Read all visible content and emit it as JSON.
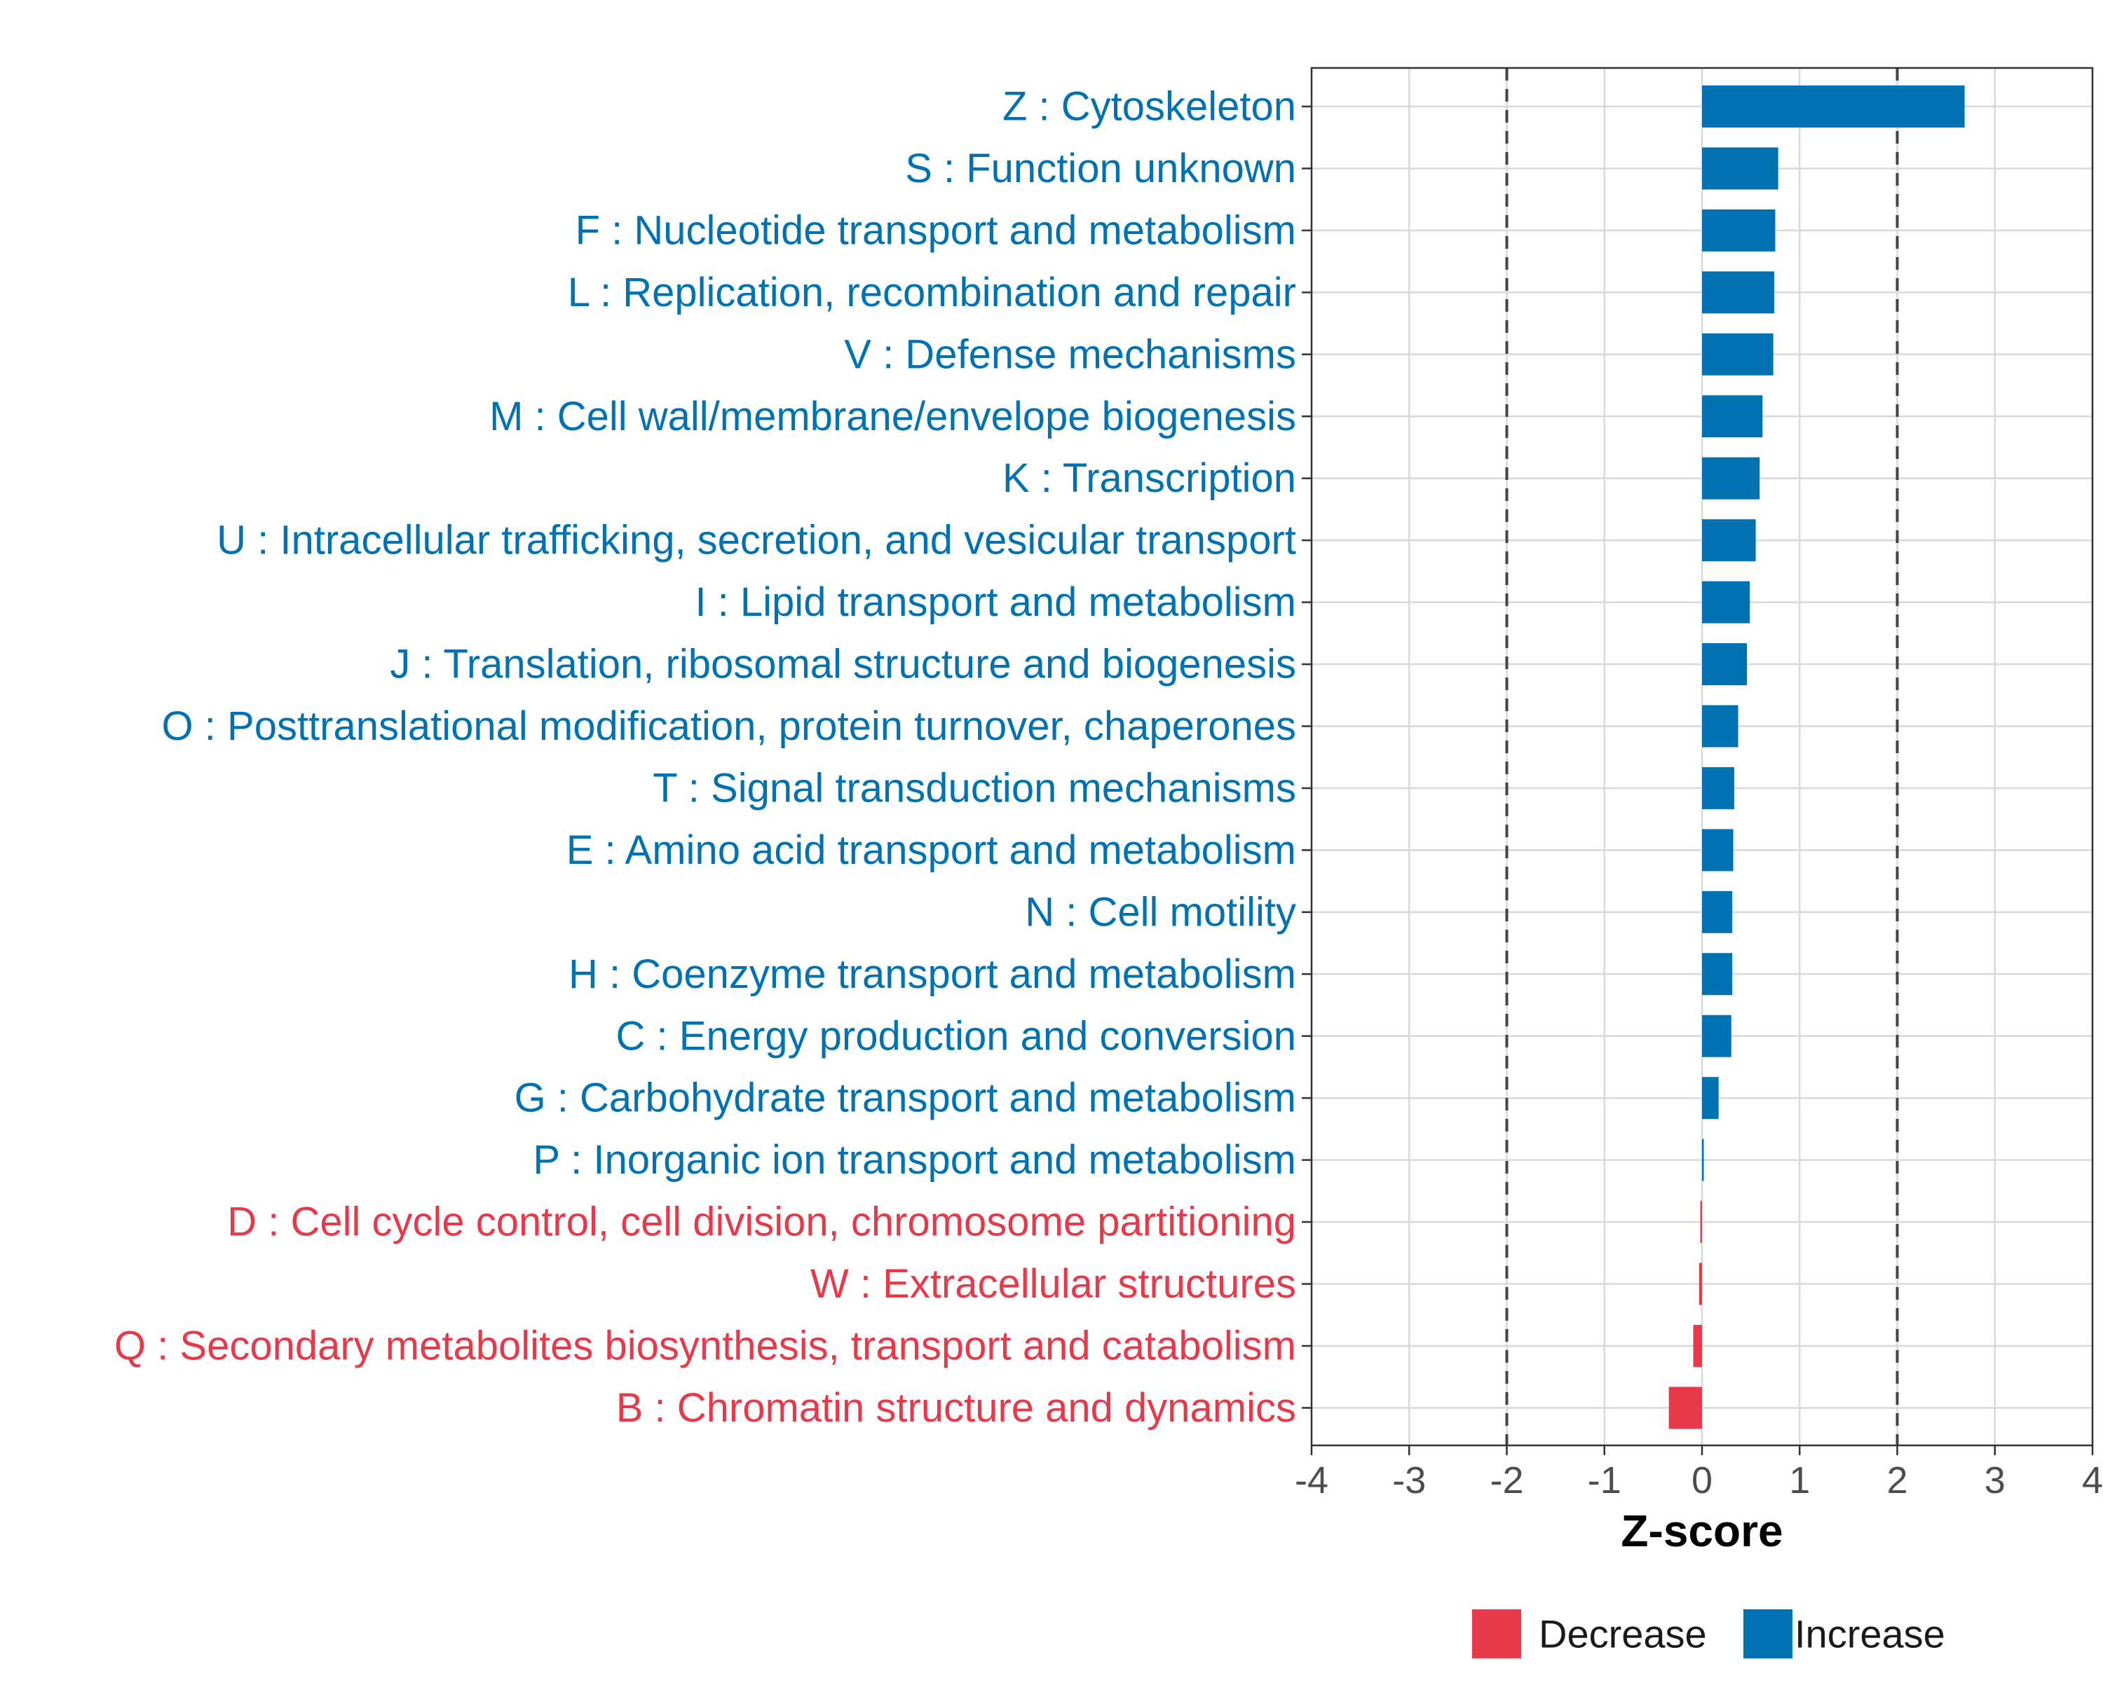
{
  "chart_data": {
    "type": "bar",
    "orientation": "horizontal",
    "title": "",
    "xlabel": "Z-score",
    "ylabel": "",
    "xlim": [
      -4,
      4
    ],
    "xticks": [
      -4,
      -3,
      -2,
      -1,
      0,
      1,
      2,
      3,
      4
    ],
    "xtick_labels": [
      "-4",
      "-3",
      "-2",
      "-1",
      "0",
      "1",
      "2",
      "3",
      "4"
    ],
    "reference_lines": [
      -2,
      2
    ],
    "grid": true,
    "legend_position": "bottom",
    "colors": {
      "Increase": "#0072b2",
      "Decrease": "#e6394a"
    },
    "legend": [
      {
        "label": "Decrease",
        "color": "#e6394a"
      },
      {
        "label": "Increase",
        "color": "#0072b2"
      }
    ],
    "categories": [
      {
        "label": "Z : Cytoskeleton",
        "value": 2.69,
        "direction": "Increase"
      },
      {
        "label": "S : Function unknown",
        "value": 0.78,
        "direction": "Increase"
      },
      {
        "label": "F : Nucleotide transport and metabolism",
        "value": 0.75,
        "direction": "Increase"
      },
      {
        "label": "L : Replication, recombination and repair",
        "value": 0.74,
        "direction": "Increase"
      },
      {
        "label": "V : Defense mechanisms",
        "value": 0.73,
        "direction": "Increase"
      },
      {
        "label": "M : Cell wall/membrane/envelope biogenesis",
        "value": 0.62,
        "direction": "Increase"
      },
      {
        "label": "K : Transcription",
        "value": 0.59,
        "direction": "Increase"
      },
      {
        "label": "U : Intracellular trafficking, secretion, and vesicular transport",
        "value": 0.55,
        "direction": "Increase"
      },
      {
        "label": "I : Lipid transport and metabolism",
        "value": 0.49,
        "direction": "Increase"
      },
      {
        "label": "J : Translation, ribosomal structure and biogenesis",
        "value": 0.46,
        "direction": "Increase"
      },
      {
        "label": "O : Posttranslational modification, protein turnover, chaperones",
        "value": 0.37,
        "direction": "Increase"
      },
      {
        "label": "T : Signal transduction mechanisms",
        "value": 0.33,
        "direction": "Increase"
      },
      {
        "label": "E : Amino acid transport and metabolism",
        "value": 0.32,
        "direction": "Increase"
      },
      {
        "label": "N : Cell motility",
        "value": 0.31,
        "direction": "Increase"
      },
      {
        "label": "H : Coenzyme transport and metabolism",
        "value": 0.31,
        "direction": "Increase"
      },
      {
        "label": "C : Energy production and conversion",
        "value": 0.3,
        "direction": "Increase"
      },
      {
        "label": "G : Carbohydrate transport and metabolism",
        "value": 0.17,
        "direction": "Increase"
      },
      {
        "label": "P : Inorganic ion transport and metabolism",
        "value": 0.01,
        "direction": "Increase"
      },
      {
        "label": "D : Cell cycle control, cell division, chromosome partitioning",
        "value": -0.01,
        "direction": "Decrease"
      },
      {
        "label": "W : Extracellular structures",
        "value": -0.03,
        "direction": "Decrease"
      },
      {
        "label": "Q : Secondary metabolites biosynthesis, transport and catabolism",
        "value": -0.09,
        "direction": "Decrease"
      },
      {
        "label": "B : Chromatin structure and dynamics",
        "value": -0.34,
        "direction": "Decrease"
      }
    ]
  }
}
